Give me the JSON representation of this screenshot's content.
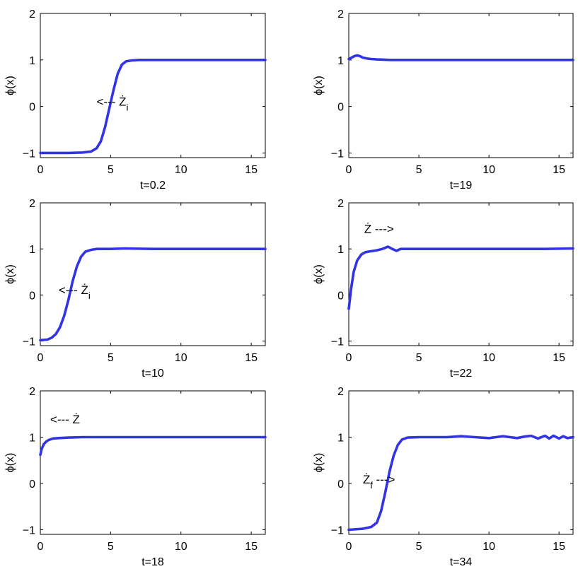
{
  "chart_data": [
    {
      "type": "line",
      "title": "",
      "xlabel": "t=0.2",
      "ylabel": "ϕ(x)",
      "xlim": [
        0,
        16
      ],
      "ylim": [
        -1.1,
        2
      ],
      "xticks": [
        0,
        5,
        10,
        15
      ],
      "yticks": [
        -1,
        0,
        1,
        2
      ],
      "grid": false,
      "series": [
        {
          "color": "#3333e6",
          "x": [
            0,
            2,
            3,
            3.6,
            4,
            4.3,
            4.6,
            4.9,
            5.2,
            5.5,
            5.8,
            6.1,
            6.5,
            7,
            8,
            10,
            12,
            14,
            16
          ],
          "y": [
            -1,
            -1,
            -0.99,
            -0.97,
            -0.9,
            -0.75,
            -0.45,
            -0.05,
            0.35,
            0.7,
            0.9,
            0.97,
            0.99,
            1,
            1,
            1,
            1,
            1,
            1
          ]
        }
      ],
      "annotations": [
        {
          "text": "<--- Ż",
          "sub": "i",
          "x": 4,
          "y": 0.02
        }
      ]
    },
    {
      "type": "line",
      "title": "",
      "xlabel": "t=19",
      "ylabel": "ϕ(x)",
      "xlim": [
        0,
        16
      ],
      "ylim": [
        -1.1,
        2
      ],
      "xticks": [
        0,
        5,
        10,
        15
      ],
      "yticks": [
        -1,
        0,
        1,
        2
      ],
      "grid": false,
      "series": [
        {
          "color": "#3333e6",
          "x": [
            0,
            0.2,
            0.4,
            0.6,
            0.8,
            1,
            1.3,
            1.6,
            2,
            3,
            5,
            8,
            10,
            12,
            14,
            16
          ],
          "y": [
            1.02,
            1.05,
            1.08,
            1.1,
            1.08,
            1.05,
            1.03,
            1.02,
            1.01,
            1,
            1,
            1,
            1,
            1,
            1,
            1
          ]
        }
      ],
      "annotations": []
    },
    {
      "type": "line",
      "title": "",
      "xlabel": "t=10",
      "ylabel": "ϕ(x)",
      "xlim": [
        0,
        16
      ],
      "ylim": [
        -1.1,
        2
      ],
      "xticks": [
        0,
        5,
        10,
        15
      ],
      "yticks": [
        -1,
        0,
        1,
        2
      ],
      "grid": false,
      "series": [
        {
          "color": "#3333e6",
          "x": [
            0,
            0.5,
            0.8,
            1.1,
            1.4,
            1.7,
            2,
            2.3,
            2.6,
            2.9,
            3.2,
            3.6,
            4,
            5,
            6,
            8,
            10,
            12,
            14,
            16
          ],
          "y": [
            -0.98,
            -0.97,
            -0.93,
            -0.85,
            -0.7,
            -0.45,
            -0.1,
            0.3,
            0.62,
            0.83,
            0.94,
            0.98,
            1,
            1,
            1.01,
            1,
            1,
            1,
            1,
            1
          ]
        }
      ],
      "annotations": [
        {
          "text": "<--- Ż",
          "sub": "i",
          "x": 1.3,
          "y": 0.02
        }
      ]
    },
    {
      "type": "line",
      "title": "",
      "xlabel": "t=22",
      "ylabel": "ϕ(x)",
      "xlim": [
        0,
        16
      ],
      "ylim": [
        -1.1,
        2
      ],
      "xticks": [
        0,
        5,
        10,
        15
      ],
      "yticks": [
        -1,
        0,
        1,
        2
      ],
      "grid": false,
      "series": [
        {
          "color": "#3333e6",
          "x": [
            0,
            0.15,
            0.35,
            0.6,
            0.9,
            1.2,
            1.6,
            2,
            2.4,
            2.8,
            3.1,
            3.4,
            3.7,
            4.2,
            5,
            7,
            10,
            12,
            14,
            16
          ],
          "y": [
            -0.3,
            0.1,
            0.5,
            0.75,
            0.88,
            0.93,
            0.95,
            0.97,
            1.0,
            1.05,
            1.0,
            0.96,
            1.0,
            1.0,
            1.0,
            1.0,
            1.0,
            1.0,
            1.0,
            1.01
          ]
        }
      ],
      "annotations": [
        {
          "text": "Ż --->",
          "sub": "",
          "x": 1.1,
          "y": 1.35
        }
      ]
    },
    {
      "type": "line",
      "title": "",
      "xlabel": "t=18",
      "ylabel": "ϕ(x)",
      "xlim": [
        0,
        16
      ],
      "ylim": [
        -1.1,
        2
      ],
      "xticks": [
        0,
        5,
        10,
        15
      ],
      "yticks": [
        -1,
        0,
        1,
        2
      ],
      "grid": false,
      "series": [
        {
          "color": "#3333e6",
          "x": [
            0,
            0.1,
            0.25,
            0.4,
            0.6,
            0.9,
            1.3,
            2,
            3,
            5,
            8,
            10,
            12,
            14,
            16
          ],
          "y": [
            0.62,
            0.75,
            0.85,
            0.9,
            0.94,
            0.97,
            0.98,
            0.99,
            1.0,
            1.0,
            1.0,
            1.0,
            1.0,
            1.0,
            1.0
          ]
        }
      ],
      "annotations": [
        {
          "text": "<--- Ż",
          "sub": "",
          "x": 0.7,
          "y": 1.3
        }
      ]
    },
    {
      "type": "line",
      "title": "",
      "xlabel": "t=34",
      "ylabel": "ϕ(x)",
      "xlim": [
        0,
        16
      ],
      "ylim": [
        -1.1,
        2
      ],
      "xticks": [
        0,
        5,
        10,
        15
      ],
      "yticks": [
        -1,
        0,
        1,
        2
      ],
      "grid": false,
      "series": [
        {
          "color": "#3333e6",
          "x": [
            0,
            1,
            1.6,
            2,
            2.3,
            2.6,
            2.9,
            3.2,
            3.5,
            3.8,
            4.2,
            5,
            6,
            7,
            8,
            9,
            10,
            10.5,
            11,
            11.5,
            12,
            12.5,
            13,
            13.5,
            14,
            14.3,
            14.6,
            15,
            15.3,
            15.6,
            16
          ],
          "y": [
            -1.0,
            -0.98,
            -0.94,
            -0.85,
            -0.6,
            -0.2,
            0.25,
            0.6,
            0.83,
            0.95,
            0.99,
            1.0,
            1.0,
            1.0,
            1.02,
            1.0,
            0.98,
            1.0,
            1.02,
            1.0,
            0.98,
            1.01,
            1.03,
            0.97,
            1.03,
            0.97,
            1.03,
            0.97,
            1.02,
            0.98,
            1.0
          ]
        }
      ],
      "annotations": [
        {
          "text": "Ż",
          "sub": "f",
          "after": " --->",
          "x": 1,
          "y": 0
        }
      ]
    }
  ]
}
